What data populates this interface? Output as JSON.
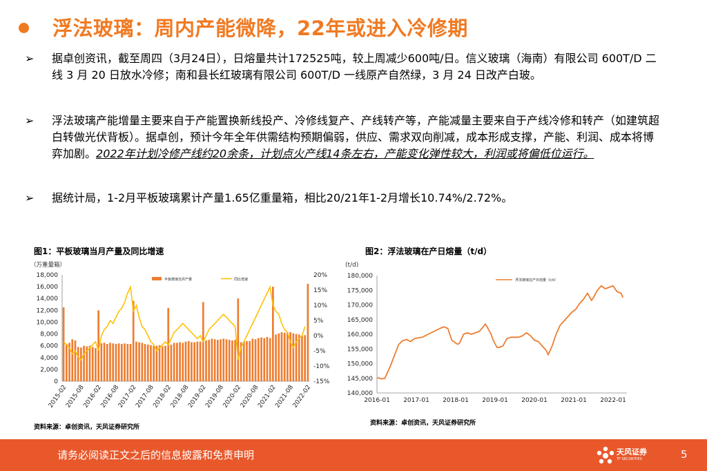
{
  "title": "浮法玻璃：周内产能微降，22年或进入冷修期",
  "bullet_marker": "➢",
  "para1": "据卓创资讯，截至周四（3月24日），日熔量共计172525吨，较上周减少600吨/日。信义玻璃（海南）有限公司 600T/D 二线 3 月 20 日放水冷修；南和县长红玻璃有限公司 600T/D 一线原产自然绿，3 月 24 日改产白玻。",
  "para2_plain": "浮法玻璃产能增量主要来自于产能置换新线投产、冷修线复产、产线转产等，产能减量主要来自于产线冷修和转产（如建筑超白转做光伏背板）。据卓创，预计今年全年供需结构预期偏弱，供应、需求双向削减，成本形成支撑，产能、利润、成本将博弈加剧。",
  "para2_highlight": "2022年计划冷修产线约20余条，计划点火产线14条左右，产能变化弹性较大，利润或将偏低位运行。",
  "para3": "据统计局，1-2月平板玻璃累计产量1.65亿重量箱，相比20/21年1-2月增长10.74%/2.72%。",
  "fig1": {
    "title": "图1：平板玻璃当月产量及同比增速",
    "source": "资料来源：卓创资讯，天风证券研究所"
  },
  "fig2": {
    "title": "图2：浮法玻璃在产日熔量（t/d）",
    "source": "资料来源：卓创资讯，天风证券研究所"
  },
  "footer": {
    "disclaimer": "请务必阅读正文之后的信息披露和免责申明",
    "brand": "天风证券",
    "brand_en": "TF SECURITIES",
    "page": "5"
  },
  "colors": {
    "accent": "#f07a22",
    "footer": "#e8582b",
    "bar": "#ed7d31",
    "line": "#ffc000"
  },
  "chart_data": [
    {
      "type": "bar",
      "title": "图1：平板玻璃当月产量及同比增速",
      "ylabel": "（万重量箱）",
      "ylim": [
        0,
        18000
      ],
      "y2lim": [
        -15,
        20
      ],
      "yticks": [
        "18,000",
        "16,000",
        "14,000",
        "12,000",
        "10,000",
        "8,000",
        "6,000",
        "4,000",
        "2,000",
        "0"
      ],
      "y2ticks": [
        "20%",
        "15%",
        "10%",
        "5%",
        "0%",
        "-5%",
        "-10%",
        "-15%"
      ],
      "xticks": [
        "2015-02",
        "2015-08",
        "2016-02",
        "2016-08",
        "2017-02",
        "2017-08",
        "2018-02",
        "2018-08",
        "2019-02",
        "2019-08",
        "2020-02",
        "2020-08",
        "2021-02",
        "2021-08",
        "2022-02"
      ],
      "series": [
        {
          "name": "平板玻璃当月产量",
          "kind": "bar",
          "values": [
            12500,
            6300,
            6500,
            7100,
            6900,
            5800,
            5700,
            6000,
            5900,
            6000,
            5800,
            5600,
            12000,
            6400,
            6500,
            6300,
            6500,
            6400,
            6300,
            6400,
            6300,
            6400,
            6300,
            6300,
            13600,
            6700,
            6600,
            6500,
            6300,
            6200,
            6100,
            6000,
            6000,
            6100,
            5900,
            6000,
            12400,
            6200,
            6500,
            6500,
            6600,
            6500,
            6700,
            6800,
            6600,
            6600,
            6700,
            6700,
            13400,
            6900,
            7000,
            7200,
            7100,
            7000,
            7100,
            7200,
            7100,
            7000,
            6900,
            7000,
            14000,
            6600,
            6700,
            6800,
            6800,
            7200,
            7100,
            7300,
            7400,
            7300,
            7500,
            7300,
            16000,
            7900,
            8100,
            8300,
            8200,
            8200,
            8300,
            8100,
            8000,
            7900,
            7700,
            7800,
            16500
          ]
        },
        {
          "name": "同比增速",
          "kind": "line",
          "axis": "right",
          "values": [
            -2,
            -3,
            -4,
            -6,
            -5,
            -7,
            -8,
            -6,
            -5,
            -4,
            -3,
            -2,
            -5,
            0,
            2,
            3,
            5,
            4,
            6,
            8,
            9,
            11,
            14,
            16,
            8,
            10,
            6,
            3,
            2,
            0,
            -2,
            -3,
            -5,
            -4,
            -3,
            -2,
            -3,
            -1,
            1,
            2,
            3,
            4,
            3,
            2,
            1,
            0,
            -1,
            0,
            -2,
            0,
            2,
            3,
            4,
            5,
            6,
            7,
            6,
            5,
            4,
            3,
            -8,
            -4,
            -2,
            0,
            2,
            4,
            6,
            8,
            10,
            12,
            14,
            16,
            10,
            8,
            7,
            4,
            2,
            1,
            -2,
            -4,
            -2,
            -1,
            0,
            3
          ]
        }
      ]
    },
    {
      "type": "line",
      "title": "图2：浮法玻璃在产日熔量（t/d）",
      "ylabel": "(t/d)",
      "ylim": [
        140000,
        180000
      ],
      "yticks": [
        "180,000",
        "175,000",
        "170,000",
        "165,000",
        "160,000",
        "155,000",
        "150,000",
        "145,000",
        "140,000"
      ],
      "xticks": [
        "2016-01",
        "2017-01",
        "2018-01",
        "2019-01",
        "2020-01",
        "2021-01",
        "2022-01"
      ],
      "series": [
        {
          "name": "浮法玻璃在产日熔量（t/d）",
          "x": [
            2016.0,
            2016.05,
            2016.1,
            2016.2,
            2016.25,
            2016.35,
            2016.45,
            2016.55,
            2016.65,
            2016.75,
            2016.85,
            2016.95,
            2017.05,
            2017.15,
            2017.3,
            2017.45,
            2017.6,
            2017.7,
            2017.8,
            2017.9,
            2018.0,
            2018.05,
            2018.1,
            2018.2,
            2018.3,
            2018.4,
            2018.5,
            2018.6,
            2018.7,
            2018.75,
            2018.8,
            2018.9,
            2018.95,
            2019.05,
            2019.1,
            2019.2,
            2019.3,
            2019.4,
            2019.5,
            2019.6,
            2019.7,
            2019.8,
            2019.9,
            2020.0,
            2020.1,
            2020.2,
            2020.3,
            2020.35,
            2020.45,
            2020.55,
            2020.65,
            2020.75,
            2020.85,
            2020.95,
            2021.05,
            2021.15,
            2021.25,
            2021.35,
            2021.45,
            2021.5,
            2021.6,
            2021.7,
            2021.8,
            2021.9,
            2022.0,
            2022.1,
            2022.2,
            2022.25
          ],
          "values": [
            145000,
            145200,
            144800,
            145000,
            146500,
            149500,
            153000,
            156500,
            157800,
            158200,
            157500,
            158500,
            158800,
            159000,
            160000,
            161000,
            162000,
            162500,
            162000,
            158000,
            157000,
            156600,
            157000,
            160000,
            160500,
            160000,
            160500,
            161000,
            162500,
            163500,
            162500,
            160000,
            158000,
            155500,
            155500,
            156000,
            158500,
            159000,
            159000,
            159000,
            159500,
            160500,
            159500,
            158000,
            157500,
            156000,
            154500,
            153000,
            156000,
            160000,
            163000,
            164500,
            166000,
            167500,
            168500,
            170500,
            172000,
            174000,
            171500,
            172500,
            175000,
            176500,
            175500,
            176000,
            176500,
            174500,
            174000,
            172500
          ]
        }
      ]
    }
  ]
}
